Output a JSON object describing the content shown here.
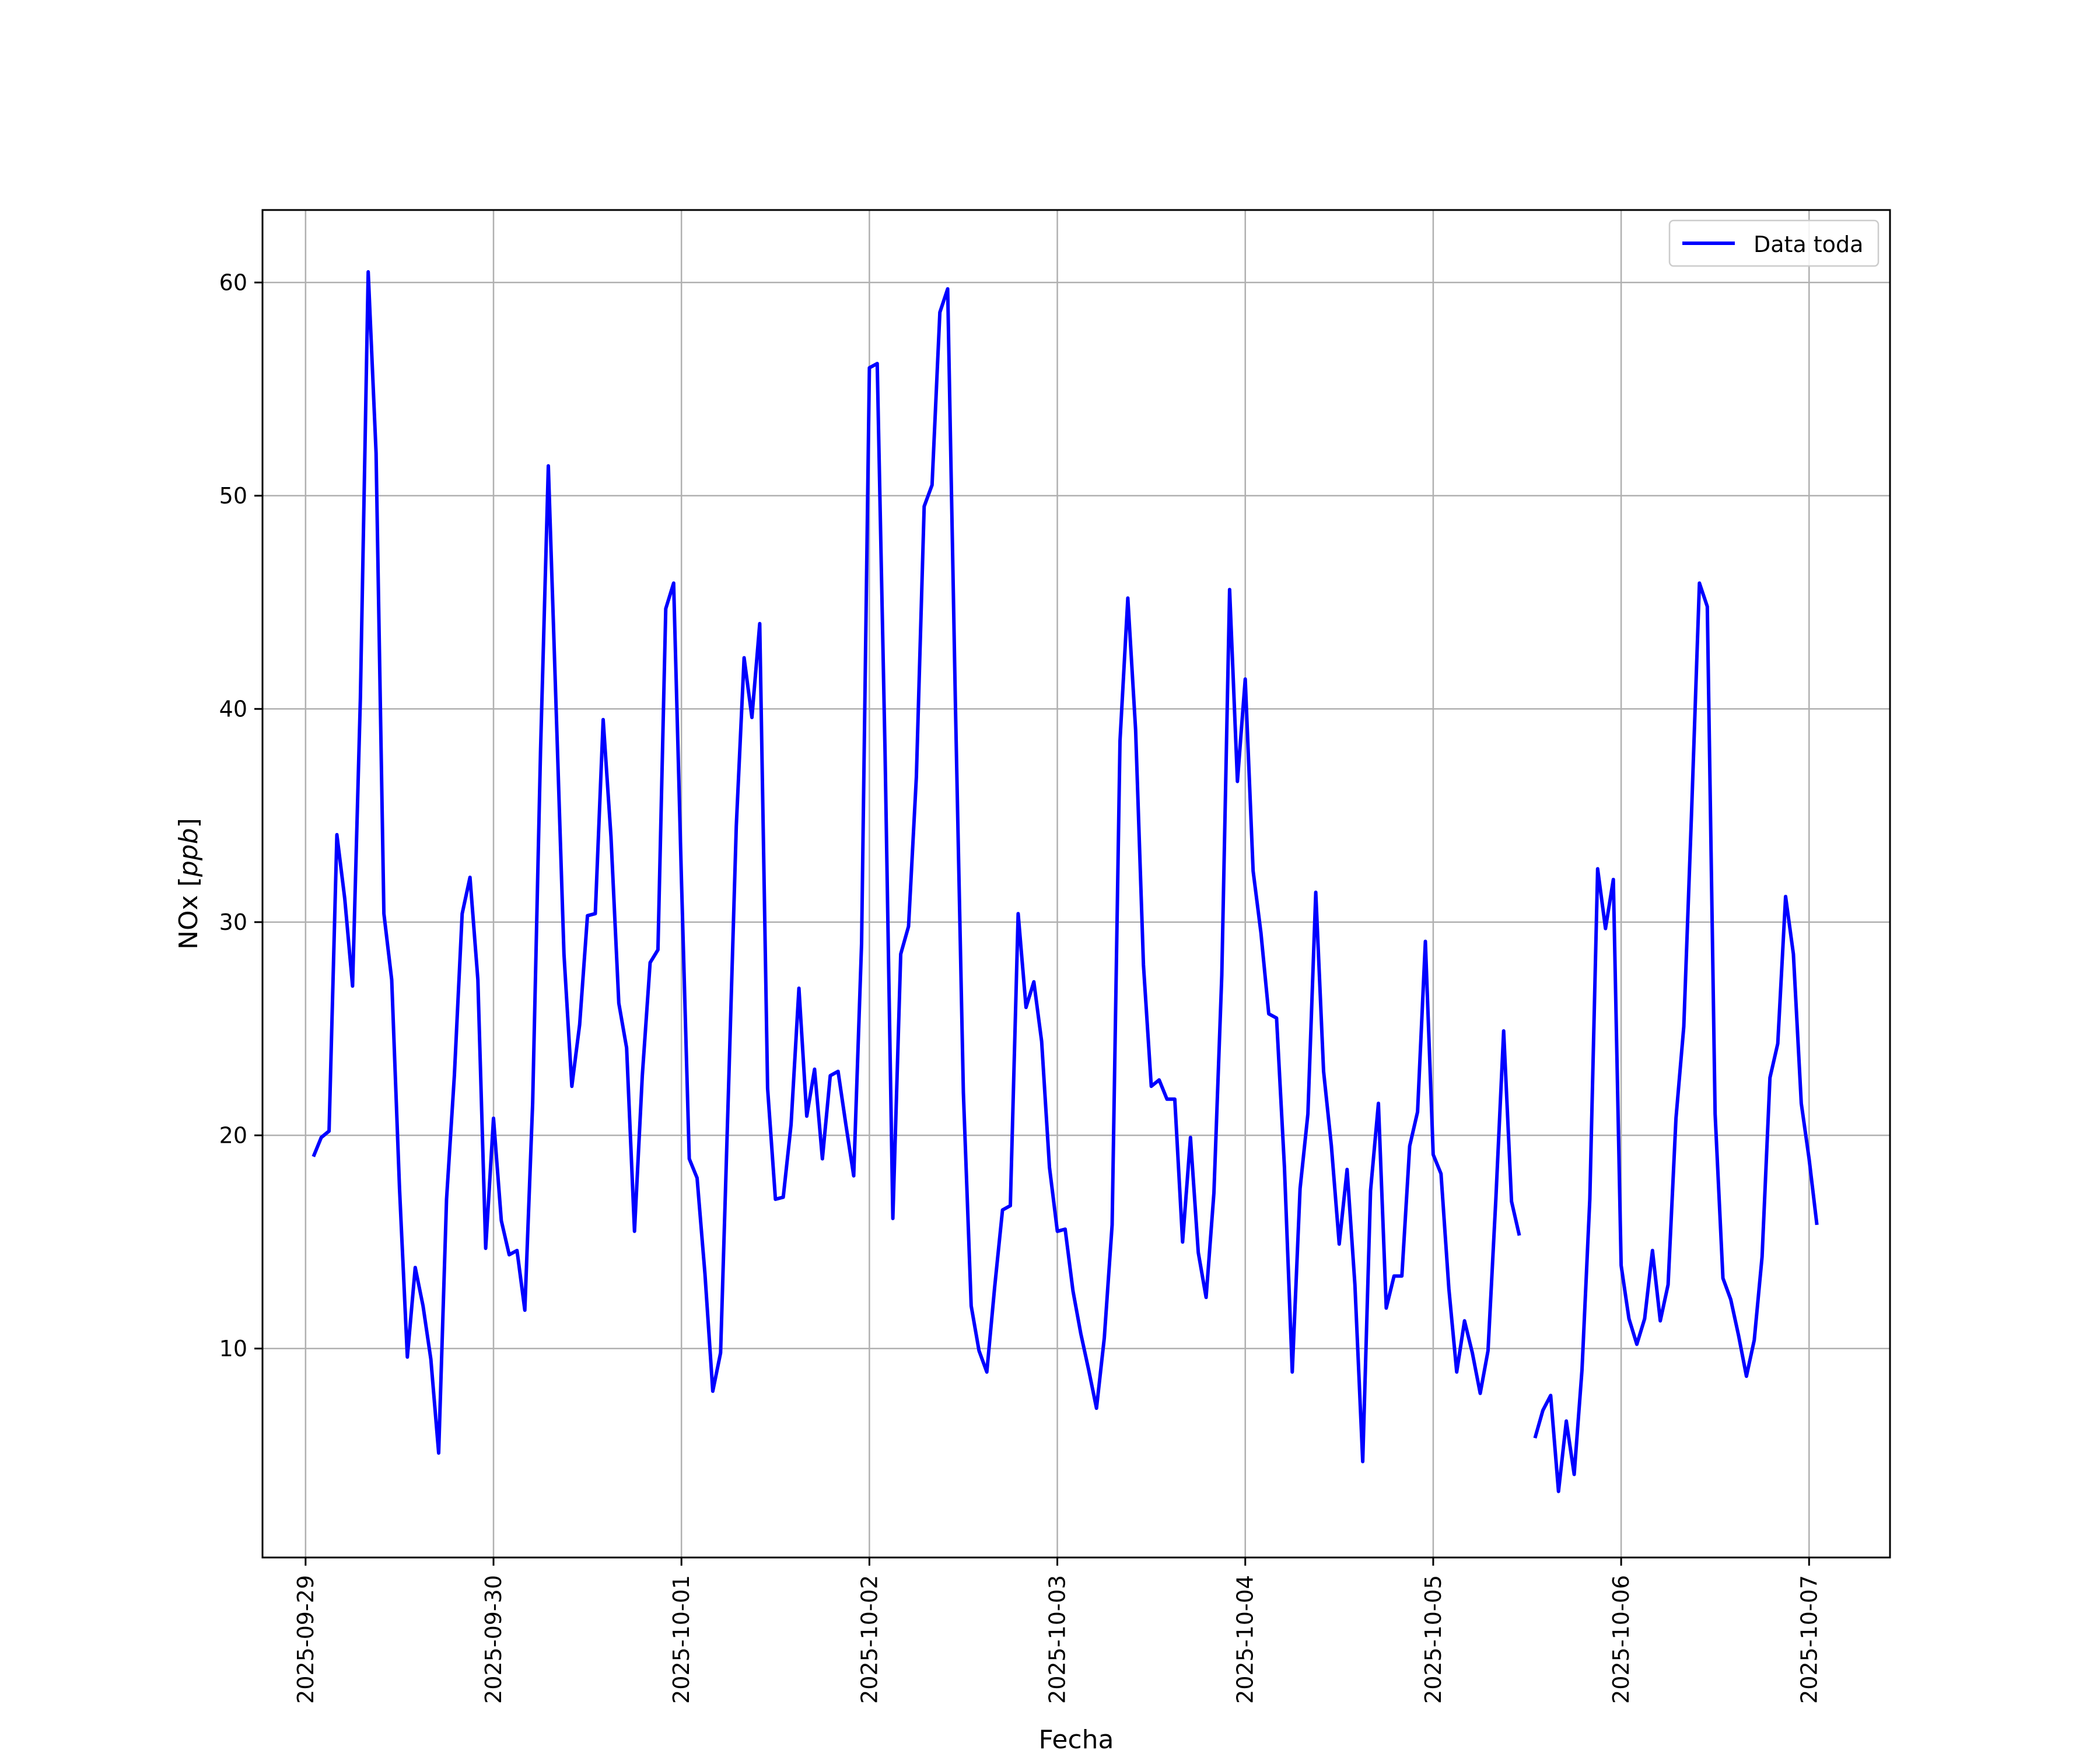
{
  "colors": {
    "line": "#0000ff",
    "grid": "#b0b0b0",
    "axes": "#000000",
    "background": "#ffffff"
  },
  "chart_data": {
    "type": "line",
    "xlabel": "Fecha",
    "ylabel_main": "NOx ",
    "ylabel_unit": "ppb",
    "grid": true,
    "legend_position": "top-right",
    "xlim": [
      "2025-09-28 18:30",
      "2025-10-07 10:20"
    ],
    "ylim": [
      0.2,
      63.4
    ],
    "x_ticks": [
      "2025-09-29",
      "2025-09-30",
      "2025-10-01",
      "2025-10-02",
      "2025-10-03",
      "2025-10-04",
      "2025-10-05",
      "2025-10-06",
      "2025-10-07"
    ],
    "y_ticks": [
      10,
      20,
      30,
      40,
      50,
      60
    ],
    "series": [
      {
        "name": "Data toda",
        "points": [
          [
            "2025-09-29 01:00",
            19.0
          ],
          [
            "2025-09-29 02:00",
            19.9
          ],
          [
            "2025-09-29 03:00",
            20.2
          ],
          [
            "2025-09-29 04:00",
            34.1
          ],
          [
            "2025-09-29 05:00",
            31.1
          ],
          [
            "2025-09-29 06:00",
            27.0
          ],
          [
            "2025-09-29 07:00",
            40.5
          ],
          [
            "2025-09-29 08:00",
            60.5
          ],
          [
            "2025-09-29 09:00",
            52.0
          ],
          [
            "2025-09-29 10:00",
            30.4
          ],
          [
            "2025-09-29 11:00",
            27.3
          ],
          [
            "2025-09-29 12:00",
            17.5
          ],
          [
            "2025-09-29 13:00",
            9.6
          ],
          [
            "2025-09-29 14:00",
            13.8
          ],
          [
            "2025-09-29 15:00",
            12.0
          ],
          [
            "2025-09-29 16:00",
            9.5
          ],
          [
            "2025-09-29 17:00",
            5.1
          ],
          [
            "2025-09-29 18:00",
            17.0
          ],
          [
            "2025-09-29 19:00",
            22.8
          ],
          [
            "2025-09-29 20:00",
            30.4
          ],
          [
            "2025-09-29 21:00",
            32.1
          ],
          [
            "2025-09-29 22:00",
            27.3
          ],
          [
            "2025-09-29 23:00",
            14.7
          ],
          [
            "2025-09-30 00:00",
            20.8
          ],
          [
            "2025-09-30 01:00",
            16.0
          ],
          [
            "2025-09-30 02:00",
            14.4
          ],
          [
            "2025-09-30 03:00",
            14.6
          ],
          [
            "2025-09-30 04:00",
            11.8
          ],
          [
            "2025-09-30 05:00",
            21.5
          ],
          [
            "2025-09-30 06:00",
            38.0
          ],
          [
            "2025-09-30 07:00",
            51.4
          ],
          [
            "2025-09-30 08:00",
            40.0
          ],
          [
            "2025-09-30 09:00",
            28.5
          ],
          [
            "2025-09-30 10:00",
            22.3
          ],
          [
            "2025-09-30 11:00",
            25.2
          ],
          [
            "2025-09-30 12:00",
            30.3
          ],
          [
            "2025-09-30 13:00",
            30.4
          ],
          [
            "2025-09-30 14:00",
            39.5
          ],
          [
            "2025-09-30 15:00",
            34.0
          ],
          [
            "2025-09-30 16:00",
            26.2
          ],
          [
            "2025-09-30 17:00",
            24.1
          ],
          [
            "2025-09-30 18:00",
            15.5
          ],
          [
            "2025-09-30 19:00",
            22.8
          ],
          [
            "2025-09-30 20:00",
            28.1
          ],
          [
            "2025-09-30 21:00",
            28.7
          ],
          [
            "2025-09-30 22:00",
            44.7
          ],
          [
            "2025-09-30 23:00",
            45.9
          ],
          [
            "2025-10-01 00:00",
            32.0
          ],
          [
            "2025-10-01 01:00",
            18.9
          ],
          [
            "2025-10-01 02:00",
            18.0
          ],
          [
            "2025-10-01 03:00",
            13.5
          ],
          [
            "2025-10-01 04:00",
            8.0
          ],
          [
            "2025-10-01 05:00",
            9.8
          ],
          [
            "2025-10-01 06:00",
            22.0
          ],
          [
            "2025-10-01 07:00",
            34.5
          ],
          [
            "2025-10-01 08:00",
            42.4
          ],
          [
            "2025-10-01 09:00",
            39.6
          ],
          [
            "2025-10-01 10:00",
            44.0
          ],
          [
            "2025-10-01 11:00",
            22.2
          ],
          [
            "2025-10-01 12:00",
            17.0
          ],
          [
            "2025-10-01 13:00",
            17.1
          ],
          [
            "2025-10-01 14:00",
            20.5
          ],
          [
            "2025-10-01 15:00",
            26.9
          ],
          [
            "2025-10-01 16:00",
            20.9
          ],
          [
            "2025-10-01 17:00",
            23.1
          ],
          [
            "2025-10-01 18:00",
            18.9
          ],
          [
            "2025-10-01 19:00",
            22.8
          ],
          [
            "2025-10-01 20:00",
            23.0
          ],
          [
            "2025-10-01 21:00",
            20.5
          ],
          [
            "2025-10-01 22:00",
            18.1
          ],
          [
            "2025-10-01 23:00",
            29.0
          ],
          [
            "2025-10-02 00:00",
            56.0
          ],
          [
            "2025-10-02 01:00",
            56.2
          ],
          [
            "2025-10-02 02:00",
            38.0
          ],
          [
            "2025-10-02 03:00",
            16.1
          ],
          [
            "2025-10-02 04:00",
            28.5
          ],
          [
            "2025-10-02 05:00",
            29.8
          ],
          [
            "2025-10-02 06:00",
            36.8
          ],
          [
            "2025-10-02 07:00",
            49.5
          ],
          [
            "2025-10-02 08:00",
            50.5
          ],
          [
            "2025-10-02 09:00",
            58.6
          ],
          [
            "2025-10-02 10:00",
            59.7
          ],
          [
            "2025-10-02 11:00",
            40.0
          ],
          [
            "2025-10-02 12:00",
            22.0
          ],
          [
            "2025-10-02 13:00",
            12.0
          ],
          [
            "2025-10-02 14:00",
            9.9
          ],
          [
            "2025-10-02 15:00",
            8.9
          ],
          [
            "2025-10-02 16:00",
            12.9
          ],
          [
            "2025-10-02 17:00",
            16.5
          ],
          [
            "2025-10-02 18:00",
            16.7
          ],
          [
            "2025-10-02 19:00",
            30.4
          ],
          [
            "2025-10-02 20:00",
            26.0
          ],
          [
            "2025-10-02 21:00",
            27.2
          ],
          [
            "2025-10-02 22:00",
            24.4
          ],
          [
            "2025-10-02 23:00",
            18.5
          ],
          [
            "2025-10-03 00:00",
            15.5
          ],
          [
            "2025-10-03 01:00",
            15.6
          ],
          [
            "2025-10-03 02:00",
            12.7
          ],
          [
            "2025-10-03 03:00",
            10.7
          ],
          [
            "2025-10-03 04:00",
            9.0
          ],
          [
            "2025-10-03 05:00",
            7.2
          ],
          [
            "2025-10-03 06:00",
            10.5
          ],
          [
            "2025-10-03 07:00",
            15.8
          ],
          [
            "2025-10-03 08:00",
            38.5
          ],
          [
            "2025-10-03 09:00",
            45.2
          ],
          [
            "2025-10-03 10:00",
            39.0
          ],
          [
            "2025-10-03 11:00",
            28.0
          ],
          [
            "2025-10-03 12:00",
            22.3
          ],
          [
            "2025-10-03 13:00",
            22.6
          ],
          [
            "2025-10-03 14:00",
            21.7
          ],
          [
            "2025-10-03 15:00",
            21.7
          ],
          [
            "2025-10-03 16:00",
            15.0
          ],
          [
            "2025-10-03 17:00",
            19.9
          ],
          [
            "2025-10-03 18:00",
            14.5
          ],
          [
            "2025-10-03 19:00",
            12.4
          ],
          [
            "2025-10-03 20:00",
            17.3
          ],
          [
            "2025-10-03 21:00",
            27.5
          ],
          [
            "2025-10-03 22:00",
            45.6
          ],
          [
            "2025-10-03 23:00",
            36.6
          ],
          [
            "2025-10-04 00:00",
            41.4
          ],
          [
            "2025-10-04 01:00",
            32.4
          ],
          [
            "2025-10-04 02:00",
            29.5
          ],
          [
            "2025-10-04 03:00",
            25.7
          ],
          [
            "2025-10-04 04:00",
            25.5
          ],
          [
            "2025-10-04 05:00",
            18.5
          ],
          [
            "2025-10-04 06:00",
            8.9
          ],
          [
            "2025-10-04 07:00",
            17.5
          ],
          [
            "2025-10-04 08:00",
            21.0
          ],
          [
            "2025-10-04 09:00",
            31.4
          ],
          [
            "2025-10-04 10:00",
            23.0
          ],
          [
            "2025-10-04 11:00",
            19.5
          ],
          [
            "2025-10-04 12:00",
            14.9
          ],
          [
            "2025-10-04 13:00",
            18.4
          ],
          [
            "2025-10-04 14:00",
            13.0
          ],
          [
            "2025-10-04 15:00",
            4.7
          ],
          [
            "2025-10-04 16:00",
            17.4
          ],
          [
            "2025-10-04 17:00",
            21.5
          ],
          [
            "2025-10-04 18:00",
            11.9
          ],
          [
            "2025-10-04 19:00",
            13.4
          ],
          [
            "2025-10-04 20:00",
            13.4
          ],
          [
            "2025-10-04 21:00",
            19.5
          ],
          [
            "2025-10-04 22:00",
            21.1
          ],
          [
            "2025-10-04 23:00",
            29.1
          ],
          [
            "2025-10-05 00:00",
            19.1
          ],
          [
            "2025-10-05 01:00",
            18.2
          ],
          [
            "2025-10-05 02:00",
            12.8
          ],
          [
            "2025-10-05 03:00",
            8.9
          ],
          [
            "2025-10-05 04:00",
            11.3
          ],
          [
            "2025-10-05 05:00",
            9.8
          ],
          [
            "2025-10-05 06:00",
            7.9
          ],
          [
            "2025-10-05 07:00",
            9.9
          ],
          [
            "2025-10-05 08:00",
            17.0
          ],
          [
            "2025-10-05 09:00",
            24.9
          ],
          [
            "2025-10-05 10:00",
            16.9
          ],
          [
            "2025-10-05 11:00",
            15.3
          ],
          [
            "2025-10-05 12:00",
            null
          ],
          [
            "2025-10-05 13:00",
            5.8
          ],
          [
            "2025-10-05 14:00",
            7.1
          ],
          [
            "2025-10-05 15:00",
            7.8
          ],
          [
            "2025-10-05 16:00",
            3.3
          ],
          [
            "2025-10-05 17:00",
            6.6
          ],
          [
            "2025-10-05 18:00",
            4.1
          ],
          [
            "2025-10-05 19:00",
            9.0
          ],
          [
            "2025-10-05 20:00",
            17.0
          ],
          [
            "2025-10-05 21:00",
            32.5
          ],
          [
            "2025-10-05 22:00",
            29.7
          ],
          [
            "2025-10-05 23:00",
            32.0
          ],
          [
            "2025-10-06 00:00",
            13.9
          ],
          [
            "2025-10-06 01:00",
            11.4
          ],
          [
            "2025-10-06 02:00",
            10.2
          ],
          [
            "2025-10-06 03:00",
            11.4
          ],
          [
            "2025-10-06 04:00",
            14.6
          ],
          [
            "2025-10-06 05:00",
            11.3
          ],
          [
            "2025-10-06 06:00",
            13.0
          ],
          [
            "2025-10-06 07:00",
            20.8
          ],
          [
            "2025-10-06 08:00",
            25.1
          ],
          [
            "2025-10-06 09:00",
            35.2
          ],
          [
            "2025-10-06 10:00",
            45.9
          ],
          [
            "2025-10-06 11:00",
            44.8
          ],
          [
            "2025-10-06 12:00",
            21.0
          ],
          [
            "2025-10-06 13:00",
            13.3
          ],
          [
            "2025-10-06 14:00",
            12.3
          ],
          [
            "2025-10-06 15:00",
            10.6
          ],
          [
            "2025-10-06 16:00",
            8.7
          ],
          [
            "2025-10-06 17:00",
            10.4
          ],
          [
            "2025-10-06 18:00",
            14.3
          ],
          [
            "2025-10-06 19:00",
            22.7
          ],
          [
            "2025-10-06 20:00",
            24.3
          ],
          [
            "2025-10-06 21:00",
            31.2
          ],
          [
            "2025-10-06 22:00",
            28.5
          ],
          [
            "2025-10-06 23:00",
            21.5
          ],
          [
            "2025-10-07 00:00",
            18.9
          ],
          [
            "2025-10-07 01:00",
            15.8
          ]
        ]
      }
    ]
  }
}
